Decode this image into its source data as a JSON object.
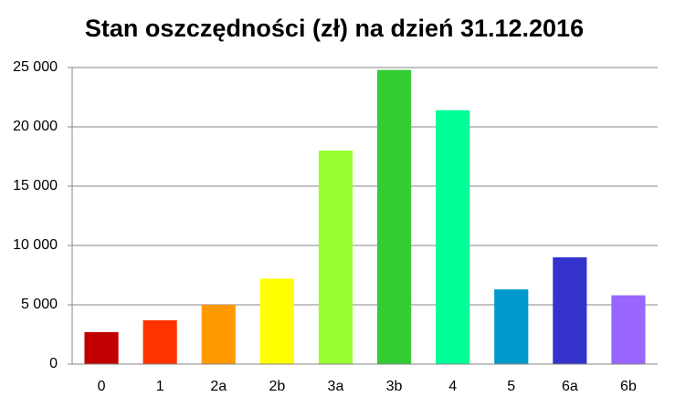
{
  "chart_data": {
    "type": "bar",
    "title": "Stan oszczędności (zł) na dzień 31.12.2016",
    "categories": [
      "0",
      "1",
      "2a",
      "2b",
      "3a",
      "3b",
      "4",
      "5",
      "6a",
      "6b"
    ],
    "values": [
      2700,
      3700,
      5000,
      7200,
      18000,
      24800,
      21400,
      6300,
      9000,
      5800
    ],
    "colors": [
      "#c00000",
      "#ff3300",
      "#ff9900",
      "#ffff00",
      "#99ff33",
      "#33cc33",
      "#00ff99",
      "#0099cc",
      "#3333cc",
      "#9966ff"
    ],
    "ylim": [
      0,
      25000
    ],
    "yticks": [
      0,
      {
        "value": 5000,
        "label": "5 000"
      },
      {
        "value": 10000,
        "label": "10 000"
      },
      {
        "value": 15000,
        "label": "15 000"
      },
      {
        "value": 20000,
        "label": "20 000"
      },
      {
        "value": 25000,
        "label": "25 000"
      }
    ],
    "grid": true
  }
}
